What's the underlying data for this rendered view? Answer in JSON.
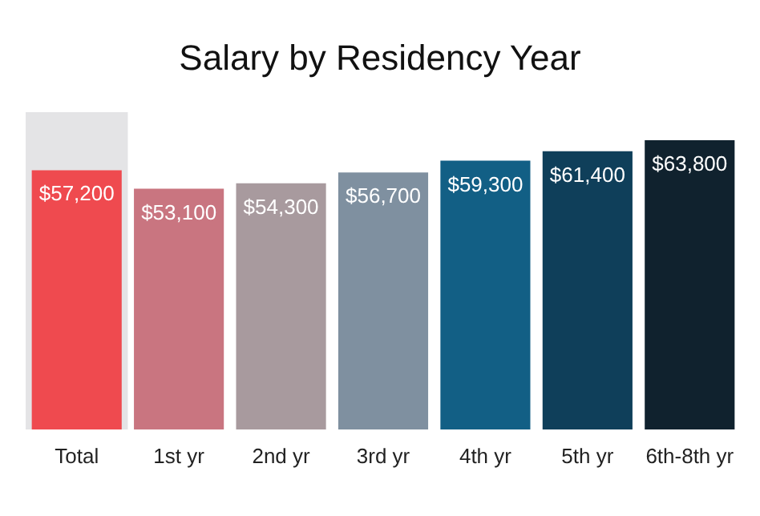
{
  "chart_data": {
    "type": "bar",
    "title": "Salary by Residency Year",
    "categories": [
      "Total",
      "1st yr",
      "2nd yr",
      "3rd yr",
      "4th yr",
      "5th yr",
      "6th-8th yr"
    ],
    "values": [
      57200,
      53100,
      54300,
      56700,
      59300,
      61400,
      63800
    ],
    "colors": [
      "#ef4a4f",
      "#c97580",
      "#a89a9e",
      "#7f90a0",
      "#125f85",
      "#0f3f5a",
      "#10222e"
    ],
    "value_labels": [
      "$57,200",
      "$53,100",
      "$54,300",
      "$56,700",
      "$59,300",
      "$61,400",
      "$63,800"
    ],
    "bands": [
      {
        "axis": "x",
        "from": "Total",
        "to": "Total",
        "color": "#e4e4e6"
      }
    ]
  }
}
